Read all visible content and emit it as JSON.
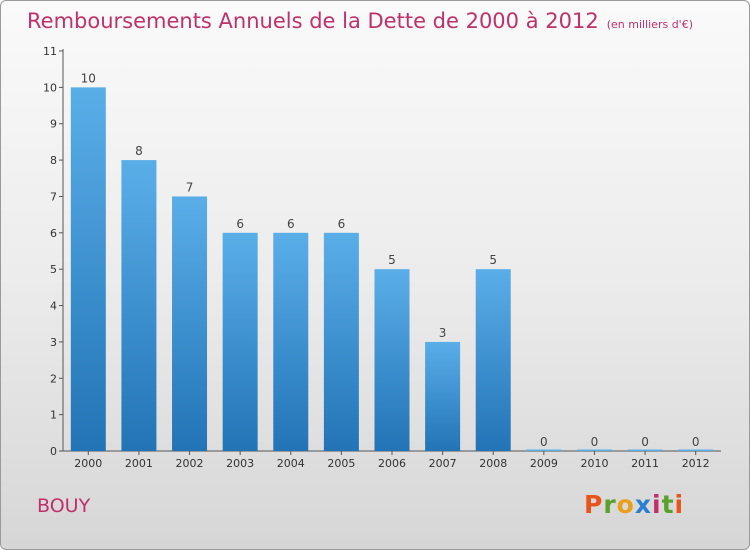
{
  "header": {
    "title": "Remboursements Annuels de la Dette de 2000 à 2012",
    "unit": "(en milliers d'€)"
  },
  "footer": {
    "commune": "BOUY",
    "logo": [
      "P",
      "r",
      "o",
      "x",
      "i",
      "t",
      "i"
    ]
  },
  "colors": {
    "title": "#c0306a",
    "bar_top": "#5aaee8",
    "bar_bottom": "#2274b6",
    "logo": [
      "#e8541a",
      "#5aa02c",
      "#e8a01a",
      "#2a7fd0",
      "#c0306a",
      "#5aa02c",
      "#e8541a"
    ]
  },
  "chart_data": {
    "type": "bar",
    "title": "Remboursements Annuels de la Dette de 2000 à 2012",
    "xlabel": "",
    "ylabel": "",
    "categories": [
      "2000",
      "2001",
      "2002",
      "2003",
      "2004",
      "2005",
      "2006",
      "2007",
      "2008",
      "2009",
      "2010",
      "2011",
      "2012"
    ],
    "values": [
      10,
      8,
      7,
      6,
      6,
      6,
      5,
      3,
      5,
      0,
      0,
      0,
      0
    ],
    "value_labels": [
      "10",
      "8",
      "7",
      "6",
      "6",
      "6",
      "5",
      "3",
      "5",
      "0",
      "0",
      "0",
      "0"
    ],
    "ylim": [
      0,
      11
    ],
    "yticks": [
      "0",
      "1",
      "2",
      "3",
      "4",
      "5",
      "6",
      "7",
      "8",
      "9",
      "10",
      "11"
    ],
    "grid": false,
    "legend": "none"
  }
}
